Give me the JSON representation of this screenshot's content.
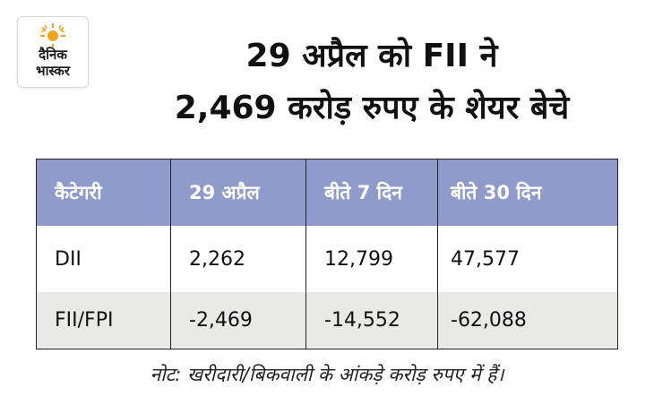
{
  "logo": {
    "line1": "दैनिक",
    "line2": "भास्कर",
    "sun_color": "#f5a21b"
  },
  "headline": {
    "line1": "29 अप्रैल को FII ने",
    "line2": "2,469 करोड़ रुपए के शेयर बेचे"
  },
  "table": {
    "headers": [
      "कैटेगरी",
      "29 अप्रैल",
      "बीते 7 दिन",
      "बीते 30 दिन"
    ],
    "rows": [
      [
        "DII",
        "2,262",
        "12,799",
        "47,577"
      ],
      [
        "FII/FPI",
        "-2,469",
        "-14,552",
        "-62,088"
      ]
    ],
    "header_color": "#8f9ccb",
    "alt_row_color": "#e9e9e8"
  },
  "note": "नोट: खरीदारी/बिकवाली के आंकड़े करोड़ रुपए में हैं।"
}
